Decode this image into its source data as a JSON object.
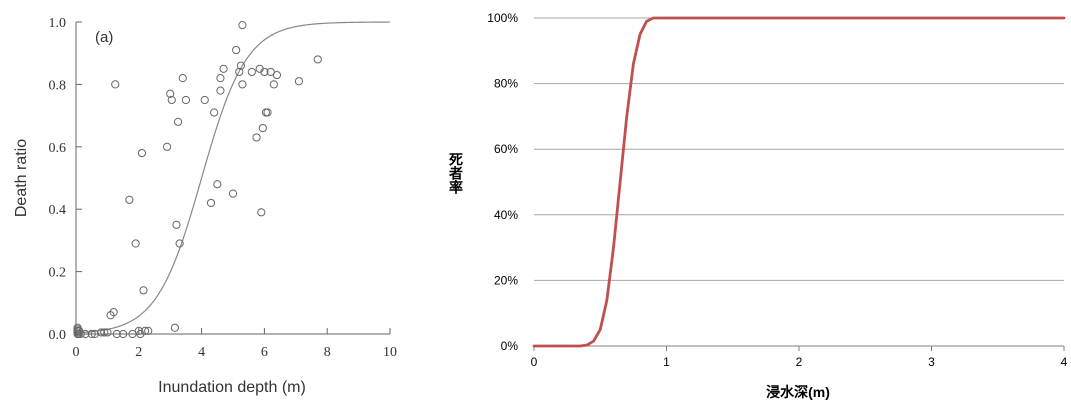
{
  "chart_data": [
    {
      "type": "scatter",
      "panel_label": "(a)",
      "xlabel": "Inundation depth (m)",
      "ylabel": "Death ratio",
      "xlim": [
        0,
        10
      ],
      "ylim": [
        0,
        1.0
      ],
      "x_ticks": [
        0,
        2,
        4,
        6,
        8,
        10
      ],
      "y_ticks": [
        "0.0",
        "0.2",
        "0.4",
        "0.6",
        "0.8",
        "1.0"
      ],
      "grid": false,
      "marker": "hollow-circle",
      "points": [
        [
          0.05,
          0.0
        ],
        [
          0.05,
          0.005
        ],
        [
          0.05,
          0.01
        ],
        [
          0.05,
          0.015
        ],
        [
          0.05,
          0.02
        ],
        [
          0.08,
          0.0
        ],
        [
          0.1,
          0.01
        ],
        [
          0.15,
          0.0
        ],
        [
          0.3,
          0.0
        ],
        [
          0.5,
          0.0
        ],
        [
          0.6,
          0.0
        ],
        [
          0.8,
          0.005
        ],
        [
          0.9,
          0.005
        ],
        [
          1.0,
          0.005
        ],
        [
          1.1,
          0.06
        ],
        [
          1.2,
          0.07
        ],
        [
          1.25,
          0.8
        ],
        [
          1.3,
          0.0
        ],
        [
          1.5,
          0.0
        ],
        [
          1.7,
          0.43
        ],
        [
          1.8,
          0.0
        ],
        [
          1.9,
          0.29
        ],
        [
          2.0,
          0.01
        ],
        [
          2.05,
          0.0
        ],
        [
          2.1,
          0.58
        ],
        [
          2.15,
          0.14
        ],
        [
          2.2,
          0.01
        ],
        [
          2.3,
          0.01
        ],
        [
          2.9,
          0.6
        ],
        [
          3.0,
          0.77
        ],
        [
          3.05,
          0.75
        ],
        [
          3.15,
          0.02
        ],
        [
          3.2,
          0.35
        ],
        [
          3.25,
          0.68
        ],
        [
          3.3,
          0.29
        ],
        [
          3.4,
          0.82
        ],
        [
          3.5,
          0.75
        ],
        [
          4.1,
          0.75
        ],
        [
          4.3,
          0.42
        ],
        [
          4.4,
          0.71
        ],
        [
          4.5,
          0.48
        ],
        [
          4.6,
          0.78
        ],
        [
          4.6,
          0.82
        ],
        [
          4.7,
          0.85
        ],
        [
          5.0,
          0.45
        ],
        [
          5.1,
          0.91
        ],
        [
          5.2,
          0.84
        ],
        [
          5.25,
          0.86
        ],
        [
          5.3,
          0.99
        ],
        [
          5.3,
          0.8
        ],
        [
          5.6,
          0.84
        ],
        [
          5.75,
          0.63
        ],
        [
          5.85,
          0.85
        ],
        [
          5.9,
          0.39
        ],
        [
          5.95,
          0.66
        ],
        [
          6.0,
          0.84
        ],
        [
          6.05,
          0.71
        ],
        [
          6.1,
          0.71
        ],
        [
          6.2,
          0.84
        ],
        [
          6.3,
          0.8
        ],
        [
          6.4,
          0.83
        ],
        [
          7.1,
          0.81
        ],
        [
          7.7,
          0.88
        ]
      ],
      "fitted_curve": {
        "model": "logistic",
        "midpoint": 4.0,
        "slope": 1.4,
        "color": "#888888"
      },
      "marker_color": "#666666"
    },
    {
      "type": "line",
      "xlabel": "浸水深(m)",
      "ylabel": "死者率",
      "xlim": [
        0,
        4
      ],
      "ylim": [
        0,
        100
      ],
      "x_ticks": [
        "0",
        "1",
        "2",
        "3",
        "4"
      ],
      "y_ticks": [
        "0%",
        "20%",
        "40%",
        "60%",
        "80%",
        "100%"
      ],
      "grid": true,
      "series": [
        {
          "color": "#c0504d",
          "points": [
            [
              0,
              0
            ],
            [
              0.35,
              0
            ],
            [
              0.4,
              0.3
            ],
            [
              0.45,
              1.5
            ],
            [
              0.5,
              5
            ],
            [
              0.55,
              14
            ],
            [
              0.6,
              30
            ],
            [
              0.65,
              50
            ],
            [
              0.7,
              70
            ],
            [
              0.75,
              86
            ],
            [
              0.8,
              95
            ],
            [
              0.85,
              99
            ],
            [
              0.9,
              100
            ],
            [
              1.0,
              100
            ],
            [
              2.0,
              100
            ],
            [
              3.0,
              100
            ],
            [
              4.0,
              100
            ]
          ]
        }
      ]
    }
  ]
}
